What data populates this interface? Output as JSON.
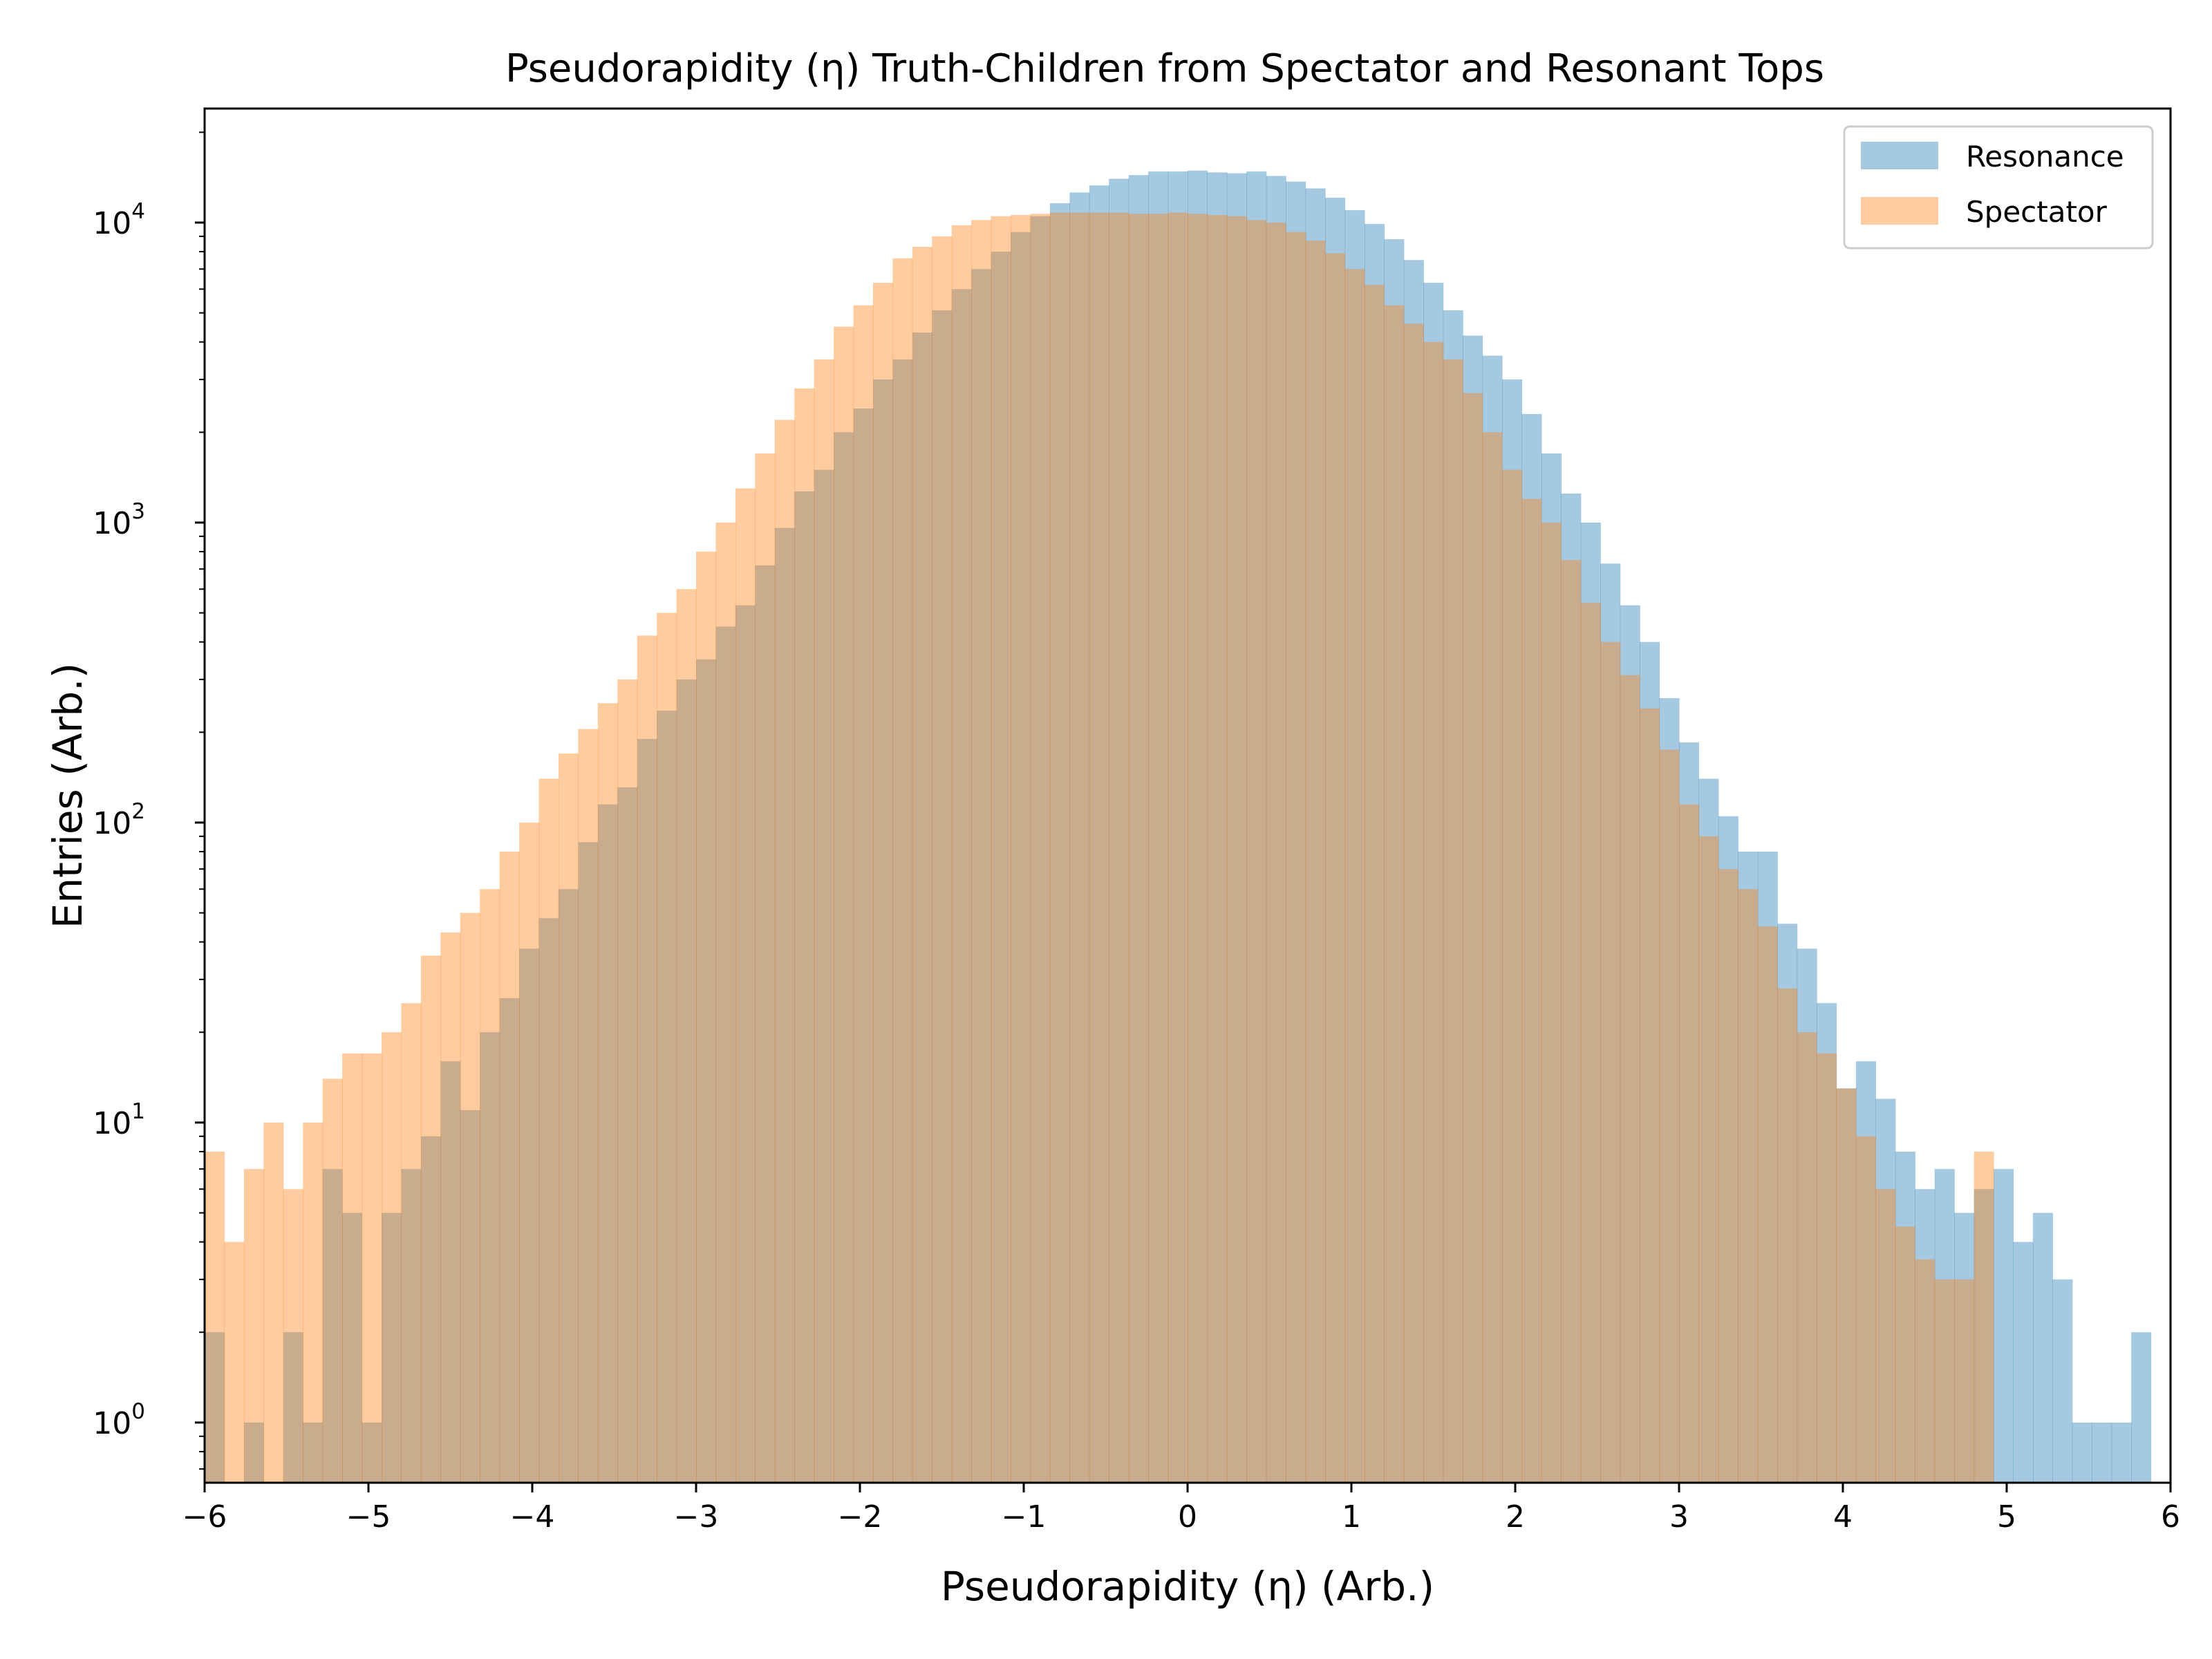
{
  "chart_data": {
    "type": "histogram",
    "title": "Pseudorapidity (η) Truth-Children from Spectator and Resonant Tops",
    "xlabel": "Pseudorapidity (η) (Arb.)",
    "ylabel": "Entries (Arb.)",
    "xlim": [
      -6,
      6
    ],
    "ylim": [
      0.63,
      24000
    ],
    "yscale": "log",
    "grid": false,
    "legend_position": "top-right",
    "bin_width": 0.12,
    "x_ticks": [
      {
        "value": -6,
        "label": "−6"
      },
      {
        "value": -5,
        "label": "−5"
      },
      {
        "value": -4,
        "label": "−4"
      },
      {
        "value": -3,
        "label": "−3"
      },
      {
        "value": -2,
        "label": "−2"
      },
      {
        "value": -1,
        "label": "−1"
      },
      {
        "value": 0,
        "label": "0"
      },
      {
        "value": 1,
        "label": "1"
      },
      {
        "value": 2,
        "label": "2"
      },
      {
        "value": 3,
        "label": "3"
      },
      {
        "value": 4,
        "label": "4"
      },
      {
        "value": 5,
        "label": "5"
      },
      {
        "value": 6,
        "label": "6"
      }
    ],
    "y_ticks": [
      {
        "value": 1,
        "base": "10",
        "exp": "0"
      },
      {
        "value": 10,
        "base": "10",
        "exp": "1"
      },
      {
        "value": 100,
        "base": "10",
        "exp": "2"
      },
      {
        "value": 1000,
        "base": "10",
        "exp": "3"
      },
      {
        "value": 10000,
        "base": "10",
        "exp": "4"
      }
    ],
    "series": [
      {
        "name": "Resonance",
        "color": "#1f77b4",
        "values": [
          2,
          0,
          1,
          0,
          2,
          1,
          7,
          5,
          1,
          5,
          7,
          9,
          16,
          11,
          20,
          26,
          38,
          48,
          60,
          86,
          115,
          131,
          190,
          236,
          300,
          350,
          450,
          530,
          720,
          960,
          1270,
          1500,
          2000,
          2400,
          3000,
          3500,
          4300,
          5100,
          6000,
          7000,
          8000,
          9300,
          10500,
          11600,
          12600,
          13300,
          14000,
          14400,
          14800,
          14800,
          14900,
          14700,
          14600,
          14800,
          14300,
          13700,
          13000,
          12100,
          11000,
          9900,
          8800,
          7500,
          6300,
          5100,
          4200,
          3600,
          3000,
          2300,
          1700,
          1250,
          1000,
          730,
          530,
          400,
          260,
          185,
          140,
          105,
          80,
          80,
          46,
          38,
          25,
          13,
          16,
          12,
          8,
          6,
          7,
          5,
          6,
          7,
          4,
          5,
          3,
          1,
          1,
          1,
          2
        ]
      },
      {
        "name": "Spectator",
        "color": "#ff7f0e",
        "values": [
          8,
          4,
          7,
          10,
          6,
          10,
          14,
          17,
          17,
          20,
          25,
          36,
          43,
          50,
          60,
          80,
          100,
          140,
          170,
          205,
          250,
          300,
          420,
          500,
          600,
          800,
          1000,
          1300,
          1700,
          2200,
          2800,
          3500,
          4500,
          5300,
          6300,
          7600,
          8300,
          9000,
          9800,
          10200,
          10500,
          10600,
          10700,
          10800,
          10800,
          10800,
          10800,
          10700,
          10700,
          10800,
          10700,
          10600,
          10500,
          10200,
          10000,
          9300,
          8700,
          7900,
          7000,
          6200,
          5300,
          4600,
          4000,
          3500,
          2700,
          2000,
          1500,
          1200,
          1000,
          750,
          540,
          400,
          310,
          240,
          175,
          115,
          90,
          70,
          60,
          45,
          28,
          20,
          17,
          13,
          9,
          6,
          4.5,
          3.5,
          3,
          3,
          8
        ]
      }
    ]
  }
}
